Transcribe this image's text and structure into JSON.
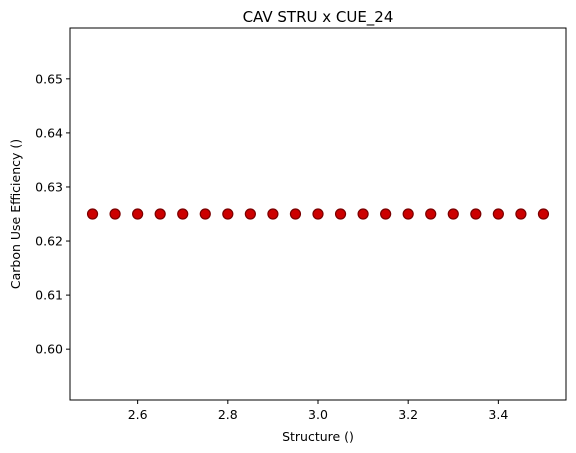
{
  "chart_data": {
    "type": "scatter",
    "title": "CAV STRU x CUE_24",
    "xlabel": "Structure ()",
    "ylabel": "Carbon Use Efficiency ()",
    "xlim": [
      2.45,
      3.55
    ],
    "ylim": [
      0.5906,
      0.6594
    ],
    "xticks": [
      2.6,
      2.8,
      3.0,
      3.2,
      3.4
    ],
    "xtick_labels": [
      "2.6",
      "2.8",
      "3.0",
      "3.2",
      "3.4"
    ],
    "yticks": [
      0.6,
      0.61,
      0.62,
      0.63,
      0.64,
      0.65
    ],
    "ytick_labels": [
      "0.60",
      "0.61",
      "0.62",
      "0.63",
      "0.64",
      "0.65"
    ],
    "grid": false,
    "marker_face_color": "#cc0000",
    "marker_edge_color": "#7a0000",
    "series": [
      {
        "x": [
          2.5,
          2.55,
          2.6,
          2.65,
          2.7,
          2.75,
          2.8,
          2.85,
          2.9,
          2.95,
          3.0,
          3.05,
          3.1,
          3.15,
          3.2,
          3.25,
          3.3,
          3.35,
          3.4,
          3.45,
          3.5
        ],
        "y": [
          0.625,
          0.625,
          0.625,
          0.625,
          0.625,
          0.625,
          0.625,
          0.625,
          0.625,
          0.625,
          0.625,
          0.625,
          0.625,
          0.625,
          0.625,
          0.625,
          0.625,
          0.625,
          0.625,
          0.625,
          0.625
        ]
      }
    ]
  }
}
